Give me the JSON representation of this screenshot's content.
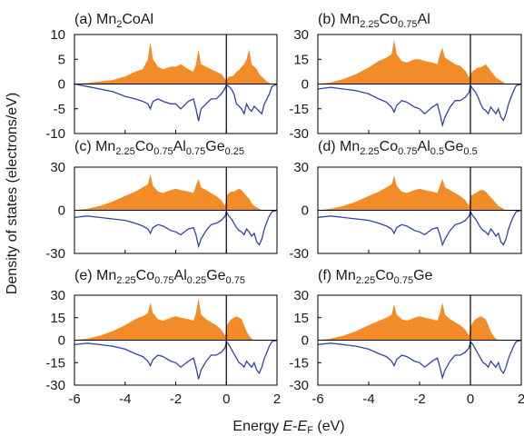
{
  "chart_data": {
    "type": "area",
    "ylabel": "Density of states (electrons/eV)",
    "xlabel": {
      "text": "Energy ",
      "italic_a": "E",
      "dash": "-",
      "italic_b": "E",
      "sub": "F",
      "unit": " (eV)"
    },
    "xlim": [
      -6,
      2
    ],
    "xticks": [
      "-6",
      "-4",
      "-2",
      "0",
      "2"
    ],
    "colors": {
      "spin_up": "#f28c28",
      "spin_down": "#3344a0",
      "fermi_line": "#000000"
    },
    "panels": [
      {
        "title": [
          {
            "t": "(a) Mn"
          },
          {
            "t": "2",
            "sub": true
          },
          {
            "t": "CoAl"
          }
        ],
        "ylim": [
          -10,
          10
        ],
        "yticks": [
          "10",
          "5",
          "0",
          "-5",
          "-10"
        ],
        "tickvals": [
          10,
          5,
          0,
          -5,
          -10
        ],
        "energy": [
          -6,
          -5.5,
          -5,
          -4.5,
          -4,
          -3.6,
          -3.3,
          -3.1,
          -3.0,
          -2.9,
          -2.7,
          -2.5,
          -2.2,
          -2.0,
          -1.8,
          -1.5,
          -1.3,
          -1.2,
          -1.1,
          -1.0,
          -0.8,
          -0.6,
          -0.4,
          -0.2,
          -0.05,
          0.0,
          0.1,
          0.2,
          0.3,
          0.4,
          0.5,
          0.6,
          0.7,
          0.8,
          0.9,
          1.0,
          1.1,
          1.2,
          1.3,
          1.4,
          1.5,
          1.6,
          1.7,
          1.8,
          2.0
        ],
        "dos_up": [
          0,
          0.2,
          0.5,
          0.8,
          1.5,
          2.5,
          3,
          5,
          8.5,
          5,
          3.5,
          3,
          3.5,
          3.5,
          4,
          3,
          2.5,
          4,
          7,
          4,
          3.5,
          3,
          2.5,
          2,
          1,
          0.8,
          1.5,
          1.5,
          1.8,
          2.5,
          2.8,
          3.5,
          4,
          5,
          7,
          4,
          3.5,
          3,
          2,
          1.5,
          1,
          0.5,
          0.2,
          0,
          0
        ],
        "dos_down": [
          0,
          -0.5,
          -1,
          -1.5,
          -2.5,
          -3,
          -3.5,
          -4,
          -5,
          -3.5,
          -3,
          -3.5,
          -4,
          -4,
          -5,
          -3.5,
          -3,
          -5,
          -7.5,
          -5,
          -4,
          -3,
          -3,
          -2,
          -0.8,
          -0.2,
          -0.5,
          -1,
          -2,
          -4,
          -4.5,
          -5,
          -6,
          -4,
          -5,
          -5.5,
          -4.5,
          -5,
          -5.5,
          -6,
          -4,
          -3,
          -2,
          -0.5,
          0
        ]
      },
      {
        "title": [
          {
            "t": "(b) Mn"
          },
          {
            "t": "2.25",
            "sub": true
          },
          {
            "t": "Co"
          },
          {
            "t": "0.75",
            "sub": true
          },
          {
            "t": "Al"
          }
        ],
        "ylim": [
          -30,
          30
        ],
        "yticks": [
          "30",
          "15",
          "0",
          "-15",
          "-30"
        ],
        "tickvals": [
          30,
          15,
          0,
          -15,
          -30
        ],
        "energy": [
          -6,
          -5.5,
          -5,
          -4.5,
          -4,
          -3.6,
          -3.3,
          -3.1,
          -3.0,
          -2.9,
          -2.7,
          -2.5,
          -2.2,
          -2.0,
          -1.8,
          -1.5,
          -1.3,
          -1.2,
          -1.1,
          -1.0,
          -0.8,
          -0.6,
          -0.4,
          -0.2,
          -0.05,
          0.0,
          0.1,
          0.2,
          0.3,
          0.4,
          0.5,
          0.6,
          0.7,
          0.8,
          0.9,
          1.0,
          1.1,
          1.2,
          1.3,
          1.4,
          1.5,
          1.6,
          1.7,
          1.8,
          2.0
        ],
        "dos_up": [
          0,
          1,
          3,
          6,
          10,
          14,
          16,
          18,
          27,
          18,
          14,
          13,
          15,
          15,
          14,
          13,
          12,
          18,
          22,
          16,
          14,
          12,
          11,
          8,
          4,
          6,
          8,
          9,
          10,
          10,
          11,
          12,
          10,
          8,
          6,
          4,
          3,
          2,
          1,
          0,
          0,
          0,
          0,
          0,
          0
        ],
        "dos_down": [
          -3,
          -2,
          -3,
          -4,
          -6,
          -9,
          -11,
          -14,
          -17,
          -13,
          -10,
          -11,
          -14,
          -15,
          -18,
          -14,
          -12,
          -18,
          -25,
          -20,
          -14,
          -10,
          -10,
          -8,
          -5,
          -1,
          -3,
          -5,
          -8,
          -12,
          -15,
          -16,
          -18,
          -14,
          -16,
          -18,
          -15,
          -20,
          -22,
          -18,
          -12,
          -8,
          -4,
          -1,
          0
        ]
      },
      {
        "title": [
          {
            "t": "(c) Mn"
          },
          {
            "t": "2.25",
            "sub": true
          },
          {
            "t": "Co"
          },
          {
            "t": "0.75",
            "sub": true
          },
          {
            "t": "Al"
          },
          {
            "t": "0.75",
            "sub": true
          },
          {
            "t": "Ge"
          },
          {
            "t": "0.25",
            "sub": true
          }
        ],
        "ylim": [
          -30,
          30
        ],
        "yticks": [
          "30",
          "0",
          "-30"
        ],
        "tickvals": [
          30,
          0,
          -30
        ],
        "energy": [
          -6,
          -5.5,
          -5,
          -4.5,
          -4,
          -3.6,
          -3.3,
          -3.1,
          -3.0,
          -2.9,
          -2.7,
          -2.5,
          -2.2,
          -2.0,
          -1.8,
          -1.5,
          -1.3,
          -1.2,
          -1.1,
          -1.0,
          -0.8,
          -0.6,
          -0.4,
          -0.2,
          -0.05,
          0.0,
          0.1,
          0.2,
          0.3,
          0.4,
          0.5,
          0.6,
          0.7,
          0.8,
          0.9,
          1.0,
          1.1,
          1.2,
          1.3,
          1.4,
          1.5,
          1.6,
          1.7,
          1.8,
          2.0
        ],
        "dos_up": [
          0,
          1,
          3,
          6,
          10,
          13,
          16,
          18,
          25,
          17,
          13,
          12,
          14,
          15,
          14,
          13,
          12,
          17,
          22,
          16,
          14,
          12,
          10,
          7,
          3,
          10,
          12,
          13,
          13,
          14,
          15,
          14,
          12,
          10,
          8,
          5,
          3,
          2,
          1,
          0,
          0,
          0,
          0,
          0,
          0
        ],
        "dos_down": [
          -5,
          -4,
          -5,
          -6,
          -7,
          -9,
          -11,
          -13,
          -16,
          -12,
          -10,
          -11,
          -14,
          -15,
          -17,
          -13,
          -12,
          -17,
          -25,
          -20,
          -14,
          -10,
          -9,
          -7,
          -4,
          -1,
          -4,
          -6,
          -9,
          -12,
          -14,
          -15,
          -17,
          -13,
          -15,
          -18,
          -16,
          -22,
          -24,
          -20,
          -13,
          -8,
          -4,
          -1,
          0
        ]
      },
      {
        "title": [
          {
            "t": "(d) Mn"
          },
          {
            "t": "2.25",
            "sub": true
          },
          {
            "t": "Co"
          },
          {
            "t": "0.75",
            "sub": true
          },
          {
            "t": "Al"
          },
          {
            "t": "0.5",
            "sub": true
          },
          {
            "t": "Ge"
          },
          {
            "t": "0.5",
            "sub": true
          }
        ],
        "ylim": [
          -30,
          30
        ],
        "yticks": [
          "30",
          "0",
          "-30"
        ],
        "tickvals": [
          30,
          0,
          -30
        ],
        "energy": [
          -6,
          -5.5,
          -5,
          -4.5,
          -4,
          -3.6,
          -3.3,
          -3.1,
          -3.0,
          -2.9,
          -2.7,
          -2.5,
          -2.2,
          -2.0,
          -1.8,
          -1.5,
          -1.3,
          -1.2,
          -1.1,
          -1.0,
          -0.8,
          -0.6,
          -0.4,
          -0.2,
          -0.05,
          0.0,
          0.1,
          0.2,
          0.3,
          0.4,
          0.5,
          0.6,
          0.7,
          0.8,
          0.9,
          1.0,
          1.1,
          1.2,
          1.3,
          1.4,
          1.5,
          1.6,
          1.7,
          1.8,
          2.0
        ],
        "dos_up": [
          0,
          1,
          3,
          6,
          10,
          13,
          16,
          18,
          24,
          17,
          13,
          12,
          14,
          15,
          14,
          13,
          12,
          17,
          22,
          16,
          14,
          12,
          10,
          7,
          3,
          10,
          11,
          12,
          13,
          14,
          14,
          13,
          11,
          9,
          7,
          5,
          3,
          2,
          1,
          0,
          0,
          0,
          0,
          0,
          0
        ],
        "dos_down": [
          -5,
          -4,
          -5,
          -6,
          -7,
          -9,
          -11,
          -13,
          -16,
          -12,
          -10,
          -11,
          -14,
          -15,
          -17,
          -13,
          -12,
          -17,
          -24,
          -20,
          -14,
          -10,
          -9,
          -7,
          -4,
          -1,
          -4,
          -6,
          -9,
          -12,
          -14,
          -15,
          -17,
          -13,
          -15,
          -18,
          -16,
          -22,
          -24,
          -20,
          -13,
          -8,
          -4,
          -1,
          0
        ]
      },
      {
        "title": [
          {
            "t": "(e) Mn"
          },
          {
            "t": "2.25",
            "sub": true
          },
          {
            "t": "Co"
          },
          {
            "t": "0.75",
            "sub": true
          },
          {
            "t": "Al"
          },
          {
            "t": "0.25",
            "sub": true
          },
          {
            "t": "Ge"
          },
          {
            "t": "0.75",
            "sub": true
          }
        ],
        "ylim": [
          -30,
          30
        ],
        "yticks": [
          "30",
          "15",
          "0",
          "-15",
          "-30"
        ],
        "tickvals": [
          30,
          15,
          0,
          -15,
          -30
        ],
        "energy": [
          -6,
          -5.5,
          -5,
          -4.5,
          -4,
          -3.6,
          -3.3,
          -3.1,
          -3.0,
          -2.9,
          -2.7,
          -2.5,
          -2.2,
          -2.0,
          -1.8,
          -1.5,
          -1.3,
          -1.2,
          -1.1,
          -1.0,
          -0.8,
          -0.6,
          -0.4,
          -0.2,
          -0.05,
          0.0,
          0.1,
          0.2,
          0.3,
          0.4,
          0.5,
          0.6,
          0.7,
          0.8,
          0.9,
          1.0,
          1.1,
          1.2,
          1.3,
          1.4,
          1.5,
          1.6,
          1.7,
          1.8,
          2.0
        ],
        "dos_up": [
          0,
          1,
          3,
          6,
          10,
          14,
          16,
          18,
          25,
          18,
          14,
          13,
          15,
          16,
          15,
          14,
          13,
          18,
          28,
          17,
          14,
          12,
          10,
          7,
          3,
          9,
          12,
          14,
          15,
          16,
          15,
          14,
          10,
          6,
          3,
          1,
          0,
          0,
          0,
          0,
          0,
          0,
          0,
          0,
          0
        ],
        "dos_down": [
          -3,
          -2,
          -3,
          -4,
          -6,
          -9,
          -11,
          -14,
          -17,
          -13,
          -10,
          -11,
          -14,
          -15,
          -18,
          -14,
          -12,
          -18,
          -26,
          -20,
          -14,
          -10,
          -10,
          -8,
          -5,
          -1,
          -3,
          -6,
          -9,
          -12,
          -15,
          -16,
          -18,
          -14,
          -16,
          -18,
          -15,
          -20,
          -22,
          -18,
          -12,
          -8,
          -4,
          -1,
          0
        ]
      },
      {
        "title": [
          {
            "t": "(f) Mn"
          },
          {
            "t": "2.25",
            "sub": true
          },
          {
            "t": "Co"
          },
          {
            "t": "0.75",
            "sub": true
          },
          {
            "t": "Ge"
          }
        ],
        "ylim": [
          -30,
          30
        ],
        "yticks": [
          "30",
          "15",
          "0",
          "-15",
          "-30"
        ],
        "tickvals": [
          30,
          15,
          0,
          -15,
          -30
        ],
        "energy": [
          -6,
          -5.5,
          -5,
          -4.5,
          -4,
          -3.6,
          -3.3,
          -3.1,
          -3.0,
          -2.9,
          -2.7,
          -2.5,
          -2.2,
          -2.0,
          -1.8,
          -1.5,
          -1.3,
          -1.2,
          -1.1,
          -1.0,
          -0.8,
          -0.6,
          -0.4,
          -0.2,
          -0.05,
          0.0,
          0.1,
          0.2,
          0.3,
          0.4,
          0.5,
          0.6,
          0.7,
          0.8,
          0.9,
          1.0,
          1.1,
          1.2,
          1.3,
          1.4,
          1.5,
          1.6,
          1.7,
          1.8,
          2.0
        ],
        "dos_up": [
          0,
          1,
          3,
          6,
          10,
          13,
          15,
          17,
          24,
          17,
          14,
          13,
          15,
          16,
          15,
          14,
          13,
          18,
          25,
          17,
          14,
          12,
          10,
          7,
          3,
          9,
          12,
          14,
          15,
          16,
          15,
          14,
          10,
          6,
          3,
          1,
          0,
          0,
          0,
          0,
          0,
          0,
          0,
          0,
          0
        ],
        "dos_down": [
          -3,
          -2,
          -3,
          -4,
          -6,
          -9,
          -11,
          -14,
          -17,
          -13,
          -10,
          -11,
          -14,
          -15,
          -18,
          -14,
          -12,
          -18,
          -25,
          -20,
          -14,
          -10,
          -10,
          -8,
          -5,
          -1,
          -3,
          -6,
          -9,
          -12,
          -15,
          -16,
          -18,
          -14,
          -16,
          -18,
          -15,
          -20,
          -22,
          -18,
          -12,
          -8,
          -4,
          -1,
          0
        ]
      }
    ]
  }
}
